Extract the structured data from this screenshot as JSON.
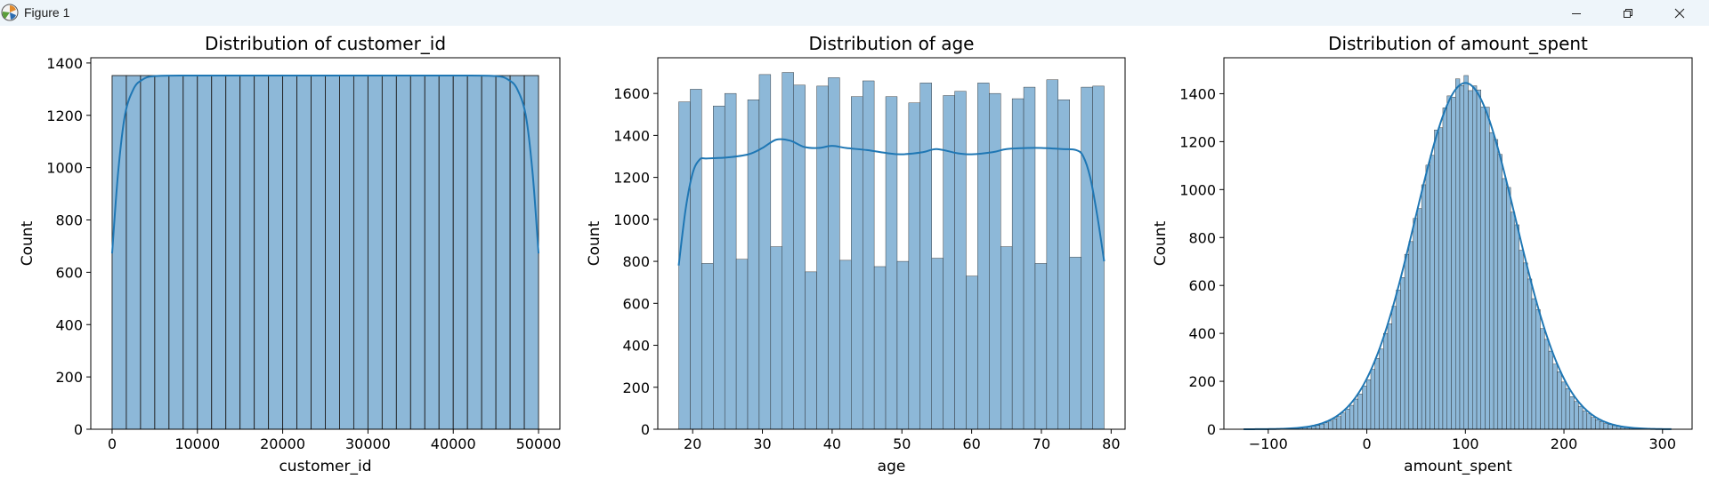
{
  "window": {
    "title": "Figure 1",
    "icons": [
      "matplotlib-icon",
      "minimize-icon",
      "restore-icon",
      "close-icon"
    ]
  },
  "colors": {
    "bar_fill": "#8db8d8",
    "bar_edge": "#1f1f1f",
    "kde_line": "#1f77b4",
    "titlebar": "#eef5fa"
  },
  "chart_data": [
    {
      "type": "bar",
      "subtype": "histogram",
      "title": "Distribution of customer_id",
      "xlabel": "customer_id",
      "ylabel": "Count",
      "xlim": [
        -2500,
        52500
      ],
      "ylim": [
        0,
        1420
      ],
      "xticks": [
        0,
        10000,
        20000,
        30000,
        40000,
        50000
      ],
      "yticks": [
        0,
        200,
        400,
        600,
        800,
        1000,
        1200,
        1400
      ],
      "bins": {
        "start": 0,
        "width": 1666.67,
        "counts": [
          1352,
          1352,
          1352,
          1352,
          1352,
          1352,
          1352,
          1352,
          1352,
          1352,
          1352,
          1352,
          1352,
          1352,
          1352,
          1352,
          1352,
          1352,
          1352,
          1352,
          1352,
          1352,
          1352,
          1352,
          1352,
          1352,
          1352,
          1352,
          1352,
          1352
        ]
      },
      "kde": {
        "x": [
          0,
          700,
          1500,
          2500,
          3500,
          5000,
          10000,
          20000,
          30000,
          40000,
          45000,
          46500,
          47500,
          48500,
          49300,
          50000
        ],
        "y": [
          672,
          980,
          1200,
          1300,
          1335,
          1350,
          1352,
          1352,
          1352,
          1352,
          1350,
          1335,
          1300,
          1200,
          980,
          672
        ]
      },
      "grid": false,
      "kde_shown": true
    },
    {
      "type": "bar",
      "subtype": "histogram",
      "title": "Distribution of age",
      "xlabel": "age",
      "ylabel": "Count",
      "xlim": [
        15,
        82
      ],
      "ylim": [
        0,
        1770
      ],
      "xticks": [
        20,
        30,
        40,
        50,
        60,
        70,
        80
      ],
      "yticks": [
        0,
        200,
        400,
        600,
        800,
        1000,
        1200,
        1400,
        1600
      ],
      "bins": {
        "start": 18,
        "width": 1.6486,
        "counts": [
          1560,
          1620,
          790,
          1540,
          1600,
          810,
          1570,
          1690,
          870,
          1700,
          1640,
          750,
          1635,
          1675,
          805,
          1585,
          1660,
          775,
          1585,
          800,
          1555,
          1650,
          815,
          1590,
          1610,
          730,
          1650,
          1600,
          870,
          1575,
          1630,
          790,
          1665,
          1570,
          820,
          1630,
          1635
        ]
      },
      "kde": {
        "x": [
          18,
          19,
          20,
          21,
          22,
          25,
          28,
          30,
          32,
          34,
          36,
          38,
          40,
          42,
          45,
          48,
          50,
          53,
          55,
          58,
          60,
          63,
          65,
          68,
          70,
          73,
          75,
          76,
          77,
          78,
          79
        ],
        "y": [
          780,
          1050,
          1220,
          1285,
          1290,
          1295,
          1310,
          1340,
          1380,
          1375,
          1345,
          1340,
          1350,
          1340,
          1330,
          1315,
          1310,
          1320,
          1335,
          1315,
          1310,
          1320,
          1335,
          1340,
          1340,
          1335,
          1330,
          1300,
          1200,
          1020,
          800
        ]
      },
      "grid": false,
      "kde_shown": true
    },
    {
      "type": "bar",
      "subtype": "histogram",
      "title": "Distribution of amount_spent",
      "xlabel": "amount_spent",
      "ylabel": "Count",
      "xlim": [
        -145,
        330
      ],
      "ylim": [
        0,
        1550
      ],
      "xticks": [
        -100,
        0,
        100,
        200,
        300
      ],
      "yticks": [
        0,
        200,
        400,
        600,
        800,
        1000,
        1200,
        1400
      ],
      "bins": {
        "start": -125,
        "width": 4.3,
        "mean": 100,
        "sd": 50,
        "peak": 1450,
        "jitter": [
          18,
          -22,
          30,
          -12,
          26,
          -30,
          8,
          20,
          -16,
          34,
          -24,
          12
        ]
      },
      "kde": {
        "mean": 100,
        "sd": 51,
        "peak": 1445,
        "from": -125,
        "to": 310
      },
      "grid": false,
      "kde_shown": true
    }
  ]
}
